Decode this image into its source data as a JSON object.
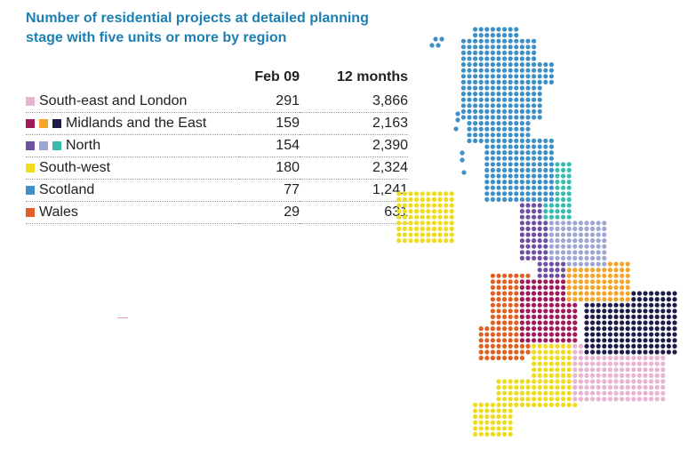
{
  "chart_data": {
    "type": "table",
    "title": "Number of residential projects at detailed planning stage with five units or more by region",
    "columns": [
      "Feb 09",
      "12 months"
    ],
    "rows": [
      {
        "region": "South-east and London",
        "feb09": "291",
        "months12": "3,866",
        "colors": [
          "#e8b4cf"
        ]
      },
      {
        "region": "Midlands and the East",
        "feb09": "159",
        "months12": "2,163",
        "colors": [
          "#a0195a",
          "#f5a52a",
          "#1e1d4a"
        ]
      },
      {
        "region": "North",
        "feb09": "154",
        "months12": "2,390",
        "colors": [
          "#6e4fa3",
          "#9ea6d2",
          "#36bdb0"
        ]
      },
      {
        "region": "South-west",
        "feb09": "180",
        "months12": "2,324",
        "colors": [
          "#f0dc1e"
        ]
      },
      {
        "region": "Scotland",
        "feb09": "77",
        "months12": "1,241",
        "colors": [
          "#3d8fc6"
        ]
      },
      {
        "region": "Wales",
        "feb09": "29",
        "months12": "631",
        "colors": [
          "#e05f23"
        ]
      }
    ]
  }
}
